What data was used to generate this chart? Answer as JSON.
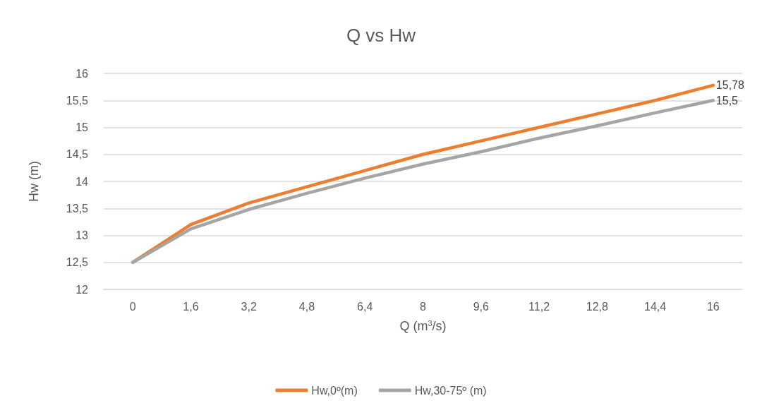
{
  "chart_data": {
    "type": "line",
    "title": "Q vs Hw",
    "xlabel": "Q (m$^{3}$/s)",
    "ylabel": "Hw (m)",
    "categories": [
      "0",
      "1,6",
      "3,2",
      "4,8",
      "6,4",
      "8",
      "9,6",
      "11,2",
      "12,8",
      "14,4",
      "16"
    ],
    "series": [
      {
        "name": "Hw,0º(m)",
        "color": "#ed7d31",
        "values": [
          12.5,
          13.2,
          13.6,
          13.9,
          14.2,
          14.5,
          14.75,
          15.0,
          15.25,
          15.5,
          15.78
        ],
        "value_labels": [
          null,
          null,
          null,
          null,
          null,
          null,
          null,
          null,
          null,
          null,
          "15,78"
        ]
      },
      {
        "name": "Hw,30-75º (m)",
        "color": "#a5a5a5",
        "values": [
          12.5,
          13.12,
          13.48,
          13.78,
          14.06,
          14.32,
          14.55,
          14.8,
          15.03,
          15.27,
          15.5
        ],
        "value_labels": [
          null,
          null,
          null,
          null,
          null,
          null,
          null,
          null,
          null,
          null,
          "15,5"
        ]
      }
    ],
    "ylim": [
      12,
      16
    ],
    "yticks": [
      12,
      {
        "value": 12.5,
        "label": "12,5"
      },
      13,
      {
        "value": 13.5,
        "label": "13,5"
      },
      14,
      {
        "value": 14.5,
        "label": "14,5"
      },
      15,
      {
        "value": 15.5,
        "label": "15,5"
      },
      16
    ],
    "grid": "y",
    "legend": "bottom",
    "marker": "none",
    "line_style": "solid"
  }
}
